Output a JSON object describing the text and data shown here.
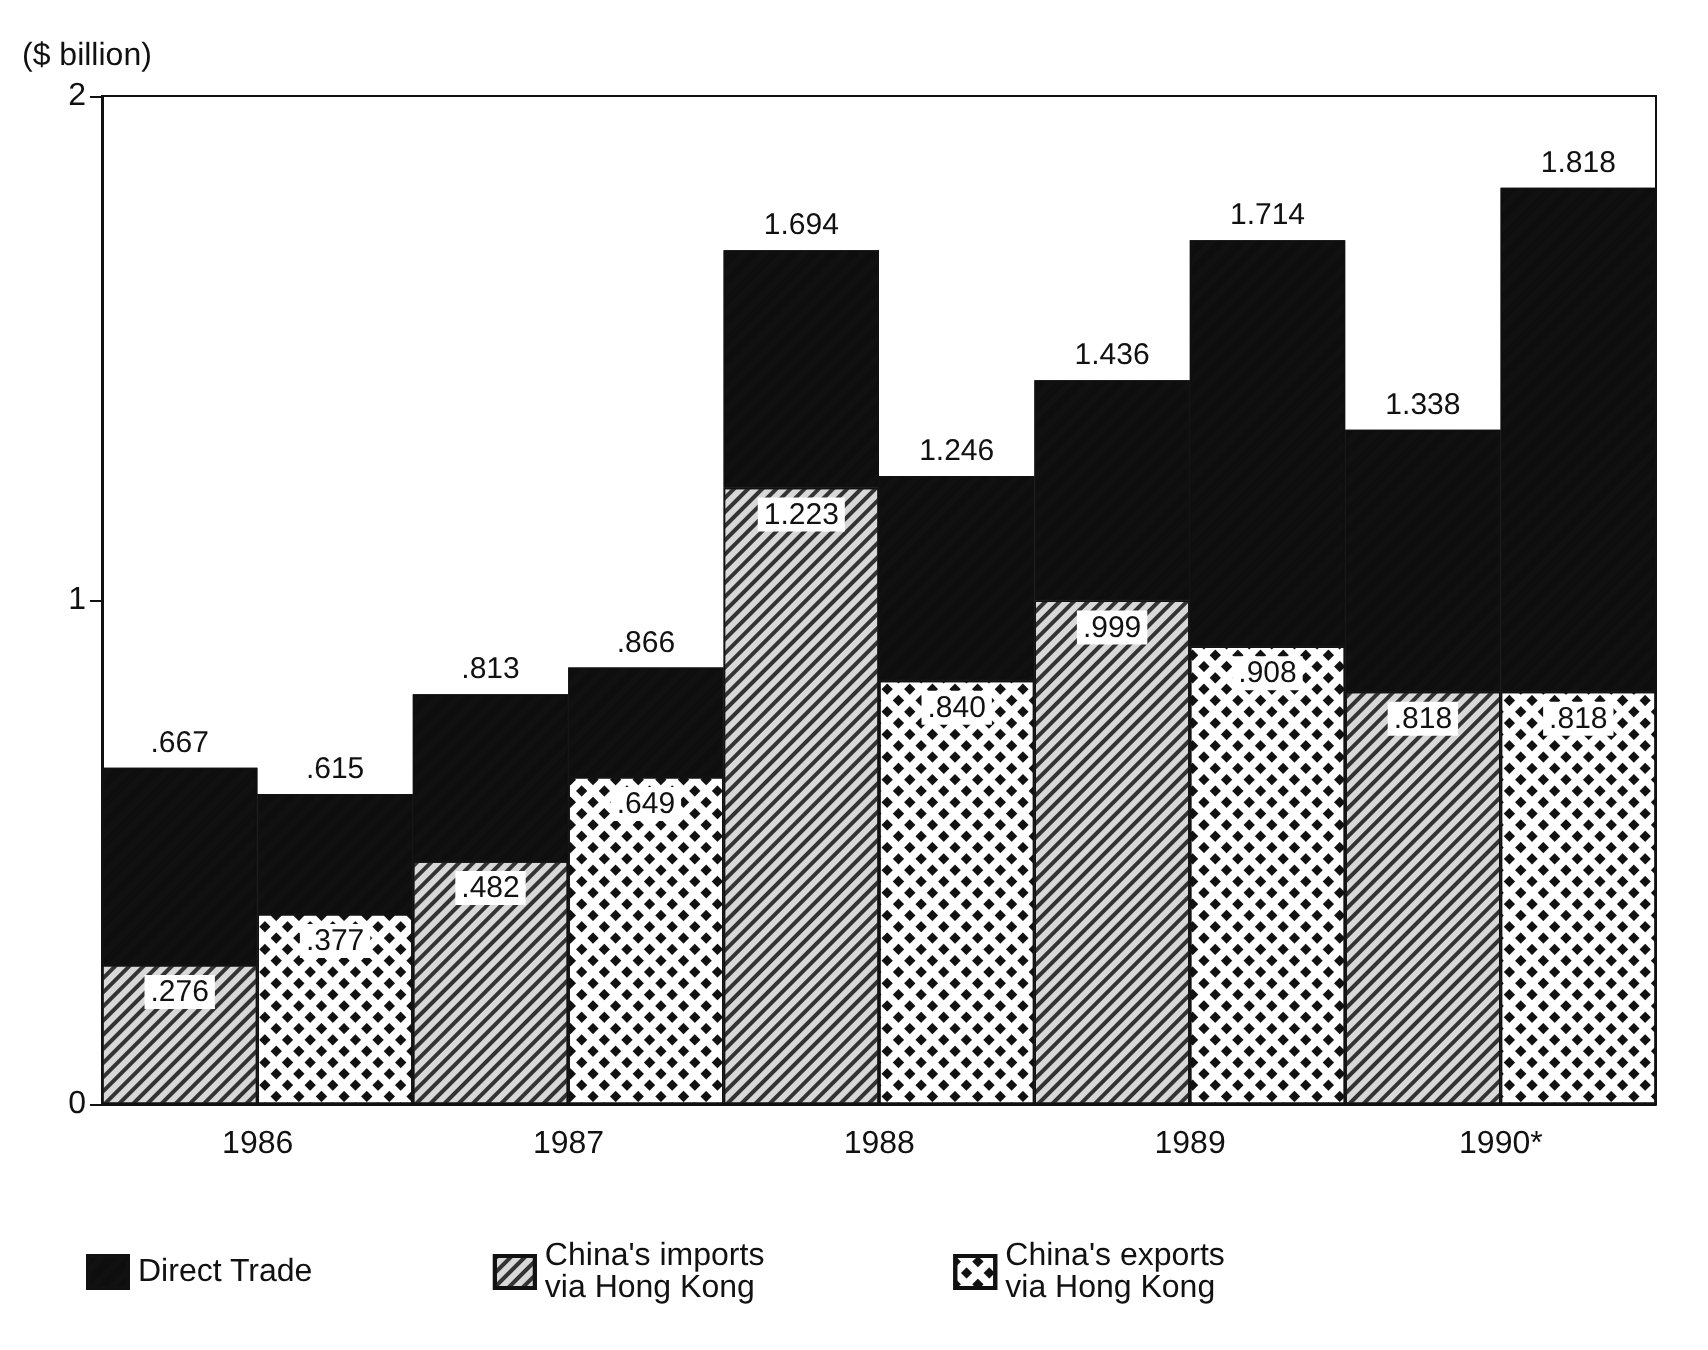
{
  "chart_data": {
    "type": "bar",
    "stacked": true,
    "ylabel": "($ billion)",
    "categories": [
      "1986",
      null,
      "1987",
      null,
      "1988",
      null,
      "1989",
      null,
      "1990*",
      null
    ],
    "series": [
      {
        "name": "China's imports via Hong Kong",
        "color": "#d8d8d8",
        "values": [
          0.276,
          null,
          0.482,
          null,
          1.223,
          null,
          0.999,
          null,
          0.818,
          null
        ],
        "value_labels": [
          ".276",
          null,
          ".482",
          null,
          "1.223",
          null,
          ".999",
          null,
          ".818",
          null
        ]
      },
      {
        "name": "China's exports via Hong Kong",
        "color": "#ffffff",
        "values": [
          null,
          0.377,
          null,
          0.649,
          null,
          0.84,
          null,
          0.908,
          null,
          0.818
        ],
        "value_labels": [
          null,
          ".377",
          null,
          ".649",
          null,
          ".840",
          null,
          ".908",
          null,
          ".818"
        ]
      },
      {
        "name": "Direct Trade",
        "color": "#111111",
        "values": [
          0.391,
          0.238,
          0.331,
          0.217,
          0.471,
          0.406,
          0.437,
          0.806,
          0.52,
          1.0
        ]
      }
    ],
    "totals": [
      ".667",
      ".615",
      ".813",
      ".866",
      "1.694",
      "1.246",
      "1.436",
      "1.714",
      "1.338",
      "1.818"
    ],
    "ylim": [
      0,
      2
    ],
    "yticks": [
      0,
      1,
      2
    ],
    "grid": false,
    "legend": "bottom"
  }
}
